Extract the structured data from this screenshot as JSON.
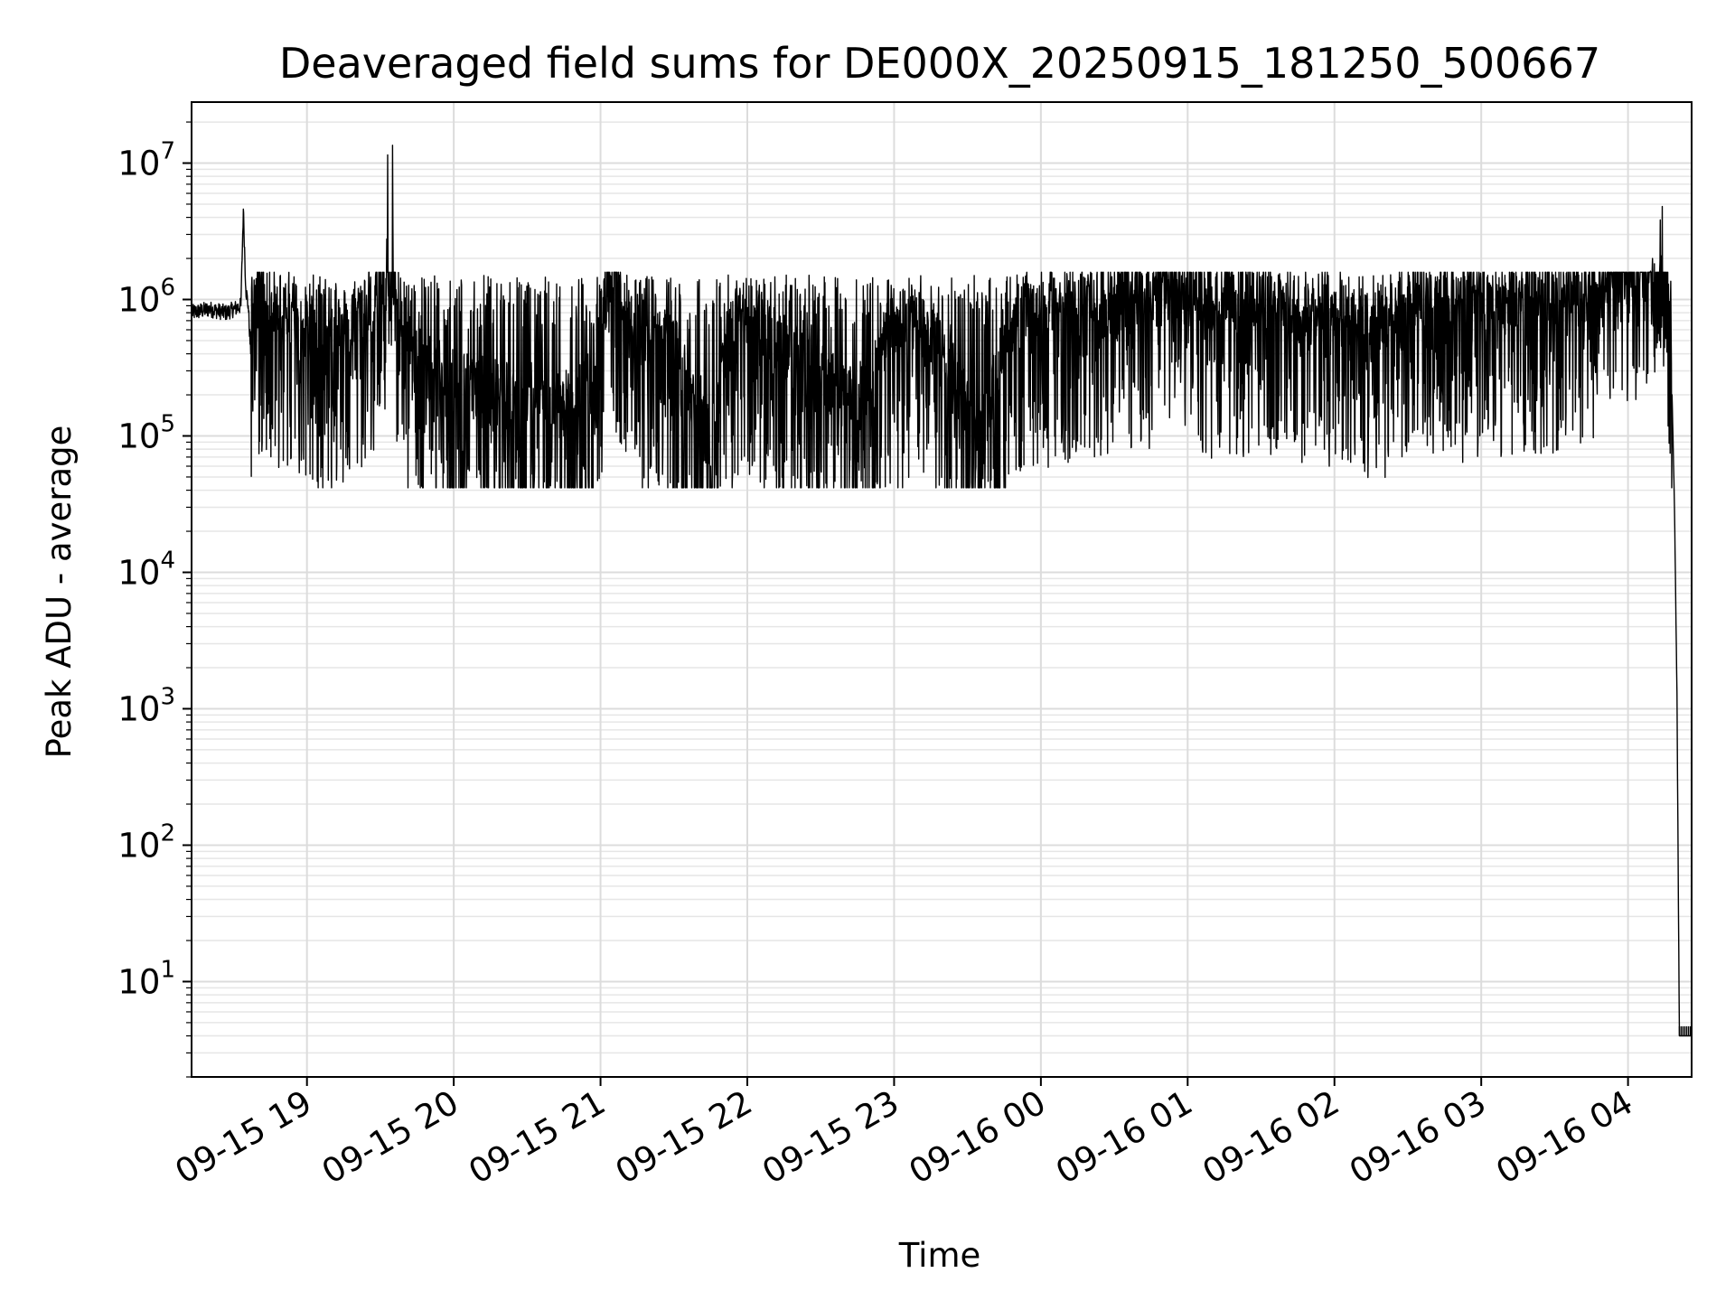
{
  "chart_data": {
    "type": "line",
    "title": "Deaveraged field sums for DE000X_20250915_181250_500667",
    "xlabel": "Time",
    "ylabel": "Peak ADU - average",
    "yscale": "log",
    "ylim": [
      2,
      28000000
    ],
    "xlim": [
      "2025-09-15 18:12:50",
      "2025-09-16 04:26:00"
    ],
    "grid": true,
    "grid_minor": true,
    "line_color": "#000000",
    "x_tick_values": [
      "2025-09-15 19:00",
      "2025-09-15 20:00",
      "2025-09-15 21:00",
      "2025-09-15 22:00",
      "2025-09-15 23:00",
      "2025-09-16 00:00",
      "2025-09-16 01:00",
      "2025-09-16 02:00",
      "2025-09-16 03:00",
      "2025-09-16 04:00"
    ],
    "x_tick_labels": [
      "09-15 19",
      "09-15 20",
      "09-15 21",
      "09-15 22",
      "09-15 23",
      "09-16 00",
      "09-16 01",
      "09-16 02",
      "09-16 03",
      "09-16 04"
    ],
    "y_ticks": [
      {
        "value": 10,
        "base": "10",
        "exp": "1"
      },
      {
        "value": 100,
        "base": "10",
        "exp": "2"
      },
      {
        "value": 1000,
        "base": "10",
        "exp": "3"
      },
      {
        "value": 10000,
        "base": "10",
        "exp": "4"
      },
      {
        "value": 100000,
        "base": "10",
        "exp": "5"
      },
      {
        "value": 1000000,
        "base": "10",
        "exp": "6"
      },
      {
        "value": 10000000,
        "base": "10",
        "exp": "7"
      }
    ],
    "series": [
      {
        "x": [
          "2025-09-15 18:13",
          "2025-09-15 18:20",
          "2025-09-15 18:27",
          "2025-09-15 18:33",
          "2025-09-15 18:34",
          "2025-09-15 18:35",
          "2025-09-15 18:36",
          "2025-09-15 18:37",
          "2025-09-15 18:38",
          "2025-09-15 18:45",
          "2025-09-15 18:55",
          "2025-09-15 19:05",
          "2025-09-15 19:15",
          "2025-09-15 19:25",
          "2025-09-15 19:32",
          "2025-09-15 19:33",
          "2025-09-15 19:34",
          "2025-09-15 19:35",
          "2025-09-15 19:36",
          "2025-09-15 19:37",
          "2025-09-15 19:38",
          "2025-09-15 19:45",
          "2025-09-15 20:00",
          "2025-09-15 20:15",
          "2025-09-15 20:30",
          "2025-09-15 20:45",
          "2025-09-15 20:58",
          "2025-09-15 21:04",
          "2025-09-15 21:15",
          "2025-09-15 21:30",
          "2025-09-15 21:45",
          "2025-09-15 21:53",
          "2025-09-15 22:00",
          "2025-09-15 22:15",
          "2025-09-15 22:30",
          "2025-09-15 22:45",
          "2025-09-15 23:00",
          "2025-09-15 23:15",
          "2025-09-15 23:35",
          "2025-09-15 23:50",
          "2025-09-16 00:05",
          "2025-09-16 00:25",
          "2025-09-16 00:45",
          "2025-09-16 00:53",
          "2025-09-16 01:10",
          "2025-09-16 01:30",
          "2025-09-16 01:45",
          "2025-09-16 02:00",
          "2025-09-16 02:15",
          "2025-09-16 02:30",
          "2025-09-16 02:45",
          "2025-09-16 03:00",
          "2025-09-16 03:15",
          "2025-09-16 03:30",
          "2025-09-16 03:45",
          "2025-09-16 04:00",
          "2025-09-16 04:10",
          "2025-09-16 04:14",
          "2025-09-16 04:16",
          "2025-09-16 04:18",
          "2025-09-16 04:19",
          "2025-09-16 04:20",
          "2025-09-16 04:21",
          "2025-09-16 04:26"
        ],
        "y": [
          800000,
          850000,
          800000,
          900000,
          4600000,
          1200000,
          900000,
          400000,
          800000,
          600000,
          500000,
          300000,
          400000,
          600000,
          900000,
          11500000,
          700000,
          13500000,
          500000,
          1000000,
          300000,
          200000,
          150000,
          120000,
          130000,
          100000,
          150000,
          1500000,
          300000,
          250000,
          60000,
          300000,
          500000,
          250000,
          150000,
          100000,
          400000,
          350000,
          60000,
          500000,
          600000,
          700000,
          800000,
          1300000,
          600000,
          700000,
          500000,
          600000,
          350000,
          700000,
          550000,
          700000,
          650000,
          750000,
          800000,
          1500000,
          2000000,
          4800000,
          1000000,
          200000,
          30000,
          1300,
          4,
          4
        ]
      }
    ]
  }
}
